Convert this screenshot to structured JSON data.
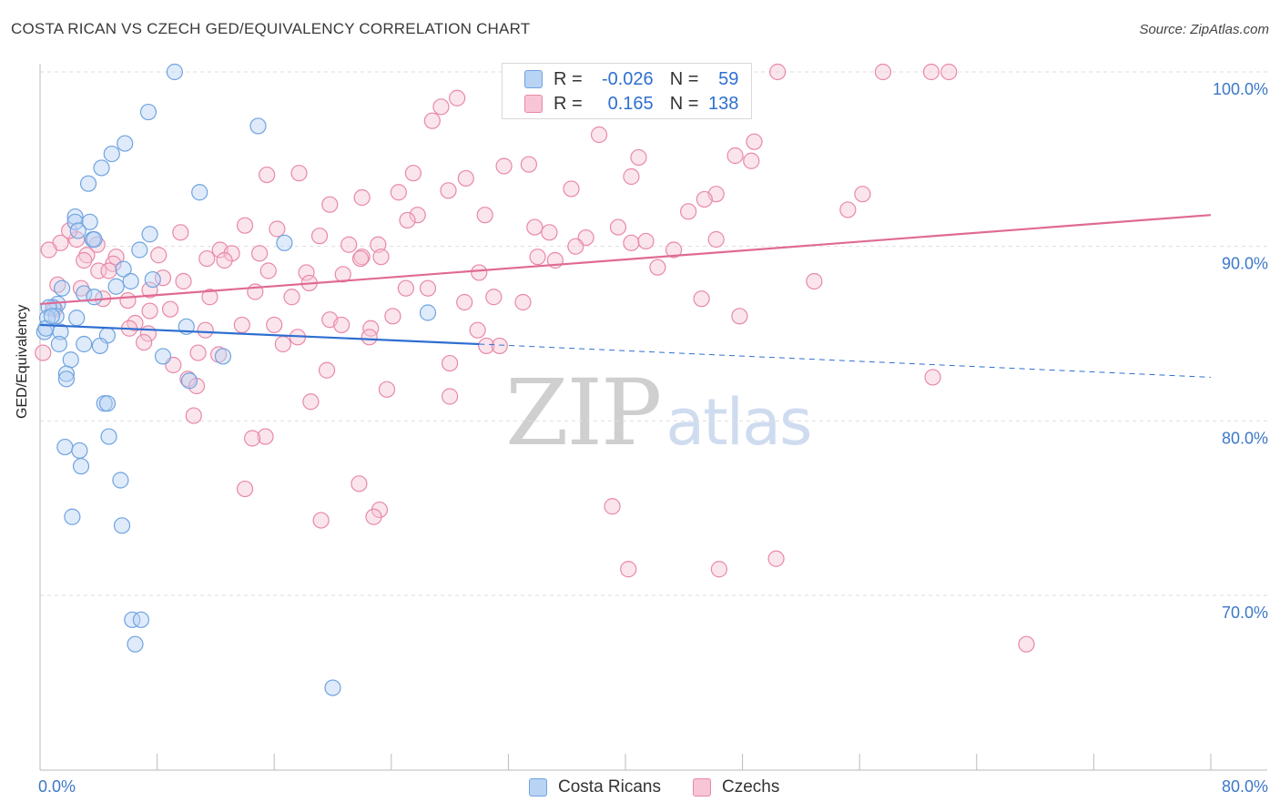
{
  "header": {
    "title": "COSTA RICAN VS CZECH GED/EQUIVALENCY CORRELATION CHART",
    "source": "Source: ZipAtlas.com"
  },
  "watermark": {
    "zip": "ZIP",
    "atlas": "atlas"
  },
  "legend": {
    "rows": [
      {
        "r_label": "R =",
        "r_value": "-0.026",
        "n_label": "N =",
        "n_value": "59",
        "color": "#6fa3e0",
        "fill": "#b8d3f3"
      },
      {
        "r_label": "R =",
        "r_value": "0.165",
        "n_label": "N =",
        "n_value": "138",
        "color": "#e888a8",
        "fill": "#f7c5d5"
      }
    ]
  },
  "bottom_legend": {
    "costa_ricans": "Costa Ricans",
    "czechs": "Czechs"
  },
  "chart_data": {
    "type": "scatter",
    "ylabel": "GED/Equivalency",
    "xlim": [
      0,
      80
    ],
    "ylim": [
      62,
      101
    ],
    "x_tick_labels": [
      {
        "value": 0,
        "label": "0.0%"
      },
      {
        "value": 80,
        "label": "80.0%"
      }
    ],
    "y_tick_labels": [
      {
        "value": 100,
        "label": "100.0%"
      },
      {
        "value": 90,
        "label": "90.0%"
      },
      {
        "value": 80,
        "label": "80.0%"
      },
      {
        "value": 70,
        "label": "70.0%"
      }
    ],
    "grid": true,
    "legend_position": "top-center",
    "series": [
      {
        "name": "Costa Ricans",
        "stroke": "#6fa3e0",
        "fill": "#b8d3f3",
        "trend": {
          "x": [
            0,
            30
          ],
          "y": [
            85.5,
            84.4
          ],
          "dashed_to": [
            80,
            82.5
          ],
          "color": "#2f6fd0"
        },
        "points": [
          [
            9.2,
            100.0
          ],
          [
            7.4,
            97.7
          ],
          [
            14.9,
            96.9
          ],
          [
            5.8,
            95.9
          ],
          [
            4.9,
            95.3
          ],
          [
            4.2,
            94.5
          ],
          [
            3.3,
            93.6
          ],
          [
            10.9,
            93.1
          ],
          [
            2.4,
            91.7
          ],
          [
            2.4,
            91.4
          ],
          [
            3.4,
            91.4
          ],
          [
            2.6,
            90.9
          ],
          [
            7.5,
            90.7
          ],
          [
            3.6,
            90.4
          ],
          [
            3.7,
            90.4
          ],
          [
            16.7,
            90.2
          ],
          [
            6.8,
            89.8
          ],
          [
            5.7,
            88.7
          ],
          [
            7.7,
            88.1
          ],
          [
            6.2,
            88.0
          ],
          [
            1.5,
            87.6
          ],
          [
            3.0,
            87.3
          ],
          [
            5.2,
            87.7
          ],
          [
            3.7,
            87.1
          ],
          [
            1.2,
            86.7
          ],
          [
            0.9,
            86.5
          ],
          [
            0.6,
            86.5
          ],
          [
            1.1,
            86.0
          ],
          [
            0.5,
            85.9
          ],
          [
            2.5,
            85.9
          ],
          [
            26.5,
            86.2
          ],
          [
            10.0,
            85.4
          ],
          [
            0.3,
            85.1
          ],
          [
            1.4,
            85.1
          ],
          [
            4.6,
            84.9
          ],
          [
            1.3,
            84.4
          ],
          [
            3.0,
            84.4
          ],
          [
            4.1,
            84.3
          ],
          [
            8.4,
            83.7
          ],
          [
            12.5,
            83.7
          ],
          [
            2.1,
            83.5
          ],
          [
            1.8,
            82.7
          ],
          [
            1.8,
            82.4
          ],
          [
            10.2,
            82.3
          ],
          [
            4.4,
            81.0
          ],
          [
            4.6,
            81.0
          ],
          [
            4.7,
            79.1
          ],
          [
            1.7,
            78.5
          ],
          [
            2.7,
            78.3
          ],
          [
            2.8,
            77.4
          ],
          [
            5.5,
            76.6
          ],
          [
            2.2,
            74.5
          ],
          [
            5.6,
            74.0
          ],
          [
            6.3,
            68.6
          ],
          [
            6.9,
            68.6
          ],
          [
            6.5,
            67.2
          ],
          [
            20.0,
            64.7
          ],
          [
            0.4,
            85.3
          ],
          [
            0.8,
            86.0
          ]
        ]
      },
      {
        "name": "Czechs",
        "stroke": "#e888a8",
        "fill": "#f7c5d5",
        "trend": {
          "x": [
            0,
            80
          ],
          "y": [
            86.7,
            91.8
          ],
          "color": "#e06a95"
        },
        "points": [
          [
            50.4,
            100.0
          ],
          [
            57.6,
            100.0
          ],
          [
            60.9,
            100.0
          ],
          [
            62.1,
            100.0
          ],
          [
            28.5,
            98.5
          ],
          [
            27.4,
            98.0
          ],
          [
            26.8,
            97.2
          ],
          [
            38.2,
            96.4
          ],
          [
            48.8,
            96.0
          ],
          [
            47.5,
            95.2
          ],
          [
            40.9,
            95.1
          ],
          [
            48.6,
            94.9
          ],
          [
            33.4,
            94.7
          ],
          [
            31.7,
            94.6
          ],
          [
            40.4,
            94.0
          ],
          [
            17.7,
            94.2
          ],
          [
            25.5,
            94.2
          ],
          [
            15.5,
            94.1
          ],
          [
            29.1,
            93.9
          ],
          [
            36.3,
            93.3
          ],
          [
            27.9,
            93.2
          ],
          [
            24.5,
            93.1
          ],
          [
            56.2,
            93.0
          ],
          [
            46.2,
            93.0
          ],
          [
            22.0,
            92.8
          ],
          [
            45.4,
            92.7
          ],
          [
            19.8,
            92.4
          ],
          [
            55.2,
            92.1
          ],
          [
            44.3,
            92.0
          ],
          [
            30.4,
            91.8
          ],
          [
            25.8,
            91.8
          ],
          [
            25.1,
            91.5
          ],
          [
            14.0,
            91.2
          ],
          [
            33.8,
            91.1
          ],
          [
            39.5,
            91.1
          ],
          [
            16.2,
            91.0
          ],
          [
            34.8,
            90.8
          ],
          [
            19.1,
            90.6
          ],
          [
            37.3,
            90.5
          ],
          [
            46.2,
            90.4
          ],
          [
            2.5,
            90.4
          ],
          [
            1.4,
            90.2
          ],
          [
            21.1,
            90.1
          ],
          [
            23.1,
            90.1
          ],
          [
            3.9,
            90.1
          ],
          [
            40.4,
            90.2
          ],
          [
            41.4,
            90.3
          ],
          [
            0.6,
            89.8
          ],
          [
            12.3,
            89.8
          ],
          [
            13.1,
            89.6
          ],
          [
            15.0,
            89.6
          ],
          [
            22.0,
            89.4
          ],
          [
            34.0,
            89.4
          ],
          [
            11.4,
            89.3
          ],
          [
            12.6,
            89.2
          ],
          [
            3.2,
            89.5
          ],
          [
            5.2,
            89.4
          ],
          [
            8.1,
            89.5
          ],
          [
            23.3,
            89.4
          ],
          [
            35.2,
            89.2
          ],
          [
            43.3,
            89.8
          ],
          [
            21.9,
            89.3
          ],
          [
            30.0,
            88.5
          ],
          [
            18.2,
            88.5
          ],
          [
            15.6,
            88.6
          ],
          [
            20.7,
            88.4
          ],
          [
            4.0,
            88.6
          ],
          [
            8.4,
            88.2
          ],
          [
            9.8,
            88.0
          ],
          [
            52.9,
            88.0
          ],
          [
            1.2,
            87.8
          ],
          [
            26.5,
            87.6
          ],
          [
            7.5,
            87.5
          ],
          [
            25.0,
            87.6
          ],
          [
            17.2,
            87.1
          ],
          [
            31.0,
            87.1
          ],
          [
            11.6,
            87.1
          ],
          [
            33.0,
            86.8
          ],
          [
            45.2,
            87.0
          ],
          [
            4.3,
            87.0
          ],
          [
            8.9,
            86.4
          ],
          [
            7.5,
            86.3
          ],
          [
            47.8,
            86.0
          ],
          [
            19.8,
            85.8
          ],
          [
            6.5,
            85.6
          ],
          [
            20.6,
            85.5
          ],
          [
            13.8,
            85.5
          ],
          [
            16.0,
            85.5
          ],
          [
            22.6,
            85.3
          ],
          [
            29.9,
            85.2
          ],
          [
            6.1,
            85.3
          ],
          [
            7.4,
            85.0
          ],
          [
            22.5,
            84.8
          ],
          [
            16.6,
            84.4
          ],
          [
            30.5,
            84.3
          ],
          [
            31.4,
            84.3
          ],
          [
            7.1,
            84.5
          ],
          [
            10.8,
            83.9
          ],
          [
            12.2,
            83.8
          ],
          [
            28.0,
            83.3
          ],
          [
            9.1,
            83.2
          ],
          [
            19.6,
            82.9
          ],
          [
            61.0,
            82.5
          ],
          [
            10.1,
            82.4
          ],
          [
            10.7,
            82.0
          ],
          [
            23.7,
            81.8
          ],
          [
            28.0,
            81.4
          ],
          [
            18.5,
            81.1
          ],
          [
            10.5,
            80.3
          ],
          [
            15.4,
            79.1
          ],
          [
            14.5,
            79.0
          ],
          [
            21.8,
            76.4
          ],
          [
            14.0,
            76.1
          ],
          [
            39.1,
            75.1
          ],
          [
            23.2,
            74.9
          ],
          [
            22.8,
            74.5
          ],
          [
            19.2,
            74.3
          ],
          [
            50.3,
            72.1
          ],
          [
            40.2,
            71.5
          ],
          [
            46.4,
            71.5
          ],
          [
            67.4,
            67.2
          ],
          [
            5.0,
            89.0
          ],
          [
            2.0,
            90.9
          ],
          [
            3.0,
            89.2
          ],
          [
            9.6,
            90.8
          ],
          [
            17.6,
            84.8
          ],
          [
            4.7,
            88.6
          ],
          [
            0.2,
            83.9
          ],
          [
            1.0,
            86.4
          ],
          [
            6.0,
            86.9
          ],
          [
            11.3,
            85.2
          ],
          [
            14.7,
            87.4
          ],
          [
            18.4,
            87.9
          ],
          [
            24.1,
            86.0
          ],
          [
            29.0,
            86.8
          ],
          [
            36.6,
            90.0
          ],
          [
            42.2,
            88.8
          ],
          [
            2.8,
            87.6
          ]
        ]
      }
    ]
  }
}
